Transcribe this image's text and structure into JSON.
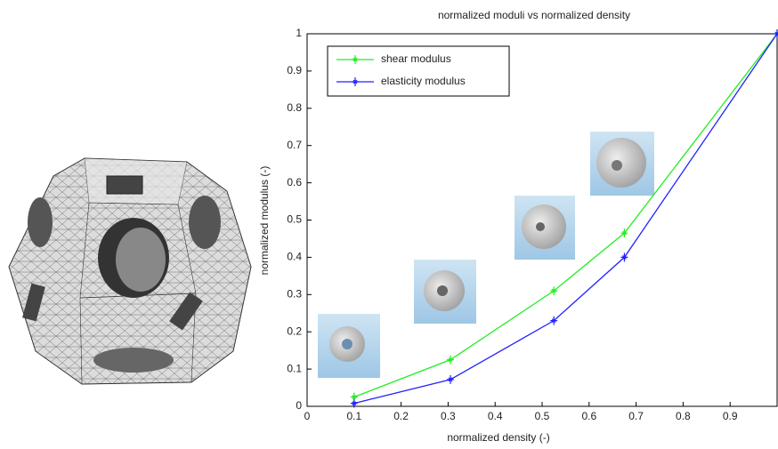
{
  "chart_data": {
    "type": "line",
    "title": "normalized moduli vs normalized density",
    "x_label": "normalized density (-)",
    "y_label": "normalized modulus (-)",
    "xlim": [
      0,
      1
    ],
    "ylim": [
      0,
      1
    ],
    "xticks": [
      0,
      0.1,
      0.2,
      0.3,
      0.4,
      0.5,
      0.6,
      0.7,
      0.8,
      0.9
    ],
    "yticks": [
      0,
      0.1,
      0.2,
      0.3,
      0.4,
      0.5,
      0.6,
      0.7,
      0.8,
      0.9,
      1
    ],
    "legend": "upper left",
    "series": [
      {
        "name": "shear modulus",
        "color": "#22ee22",
        "x": [
          0.1,
          0.305,
          0.525,
          0.675,
          1.0
        ],
        "values": [
          0.025,
          0.125,
          0.31,
          0.465,
          1.0
        ]
      },
      {
        "name": "elasticity modulus",
        "color": "#2222ff",
        "x": [
          0.1,
          0.305,
          0.525,
          0.675,
          1.0
        ],
        "values": [
          0.008,
          0.072,
          0.23,
          0.4,
          1.0
        ]
      }
    ]
  }
}
